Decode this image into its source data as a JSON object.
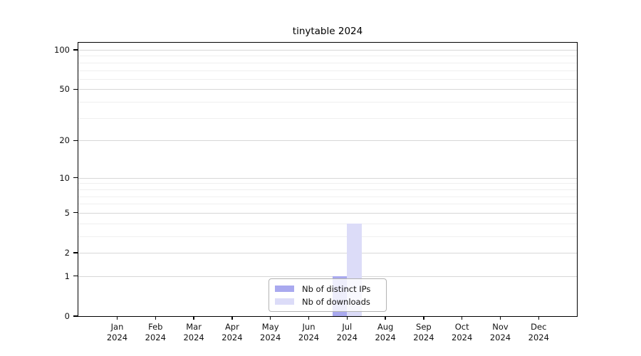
{
  "chart_data": {
    "type": "bar",
    "title": "tinytable 2024",
    "categories": [
      "Jan 2024",
      "Feb 2024",
      "Mar 2024",
      "Apr 2024",
      "May 2024",
      "Jun 2024",
      "Jul 2024",
      "Aug 2024",
      "Sep 2024",
      "Oct 2024",
      "Nov 2024",
      "Dec 2024"
    ],
    "series": [
      {
        "name": "Nb of distinct IPs",
        "color": "#a9a9ef",
        "values": [
          0,
          0,
          0,
          0,
          0,
          0,
          1,
          0,
          0,
          0,
          0,
          0
        ]
      },
      {
        "name": "Nb of downloads",
        "color": "#dcdcf8",
        "values": [
          0,
          0,
          0,
          0,
          0,
          0,
          4,
          0,
          0,
          0,
          0,
          0
        ]
      }
    ],
    "y_axis": {
      "scale": "log1p",
      "tick_values": [
        0,
        1,
        2,
        5,
        10,
        20,
        50,
        100
      ],
      "minor_gridline_values": [
        3,
        4,
        6,
        7,
        8,
        9,
        30,
        40,
        60,
        70,
        80,
        90
      ],
      "ylim": [
        0,
        113
      ]
    },
    "x_axis": {
      "year": "2024"
    },
    "legend_position": "lower center",
    "grid": true
  }
}
